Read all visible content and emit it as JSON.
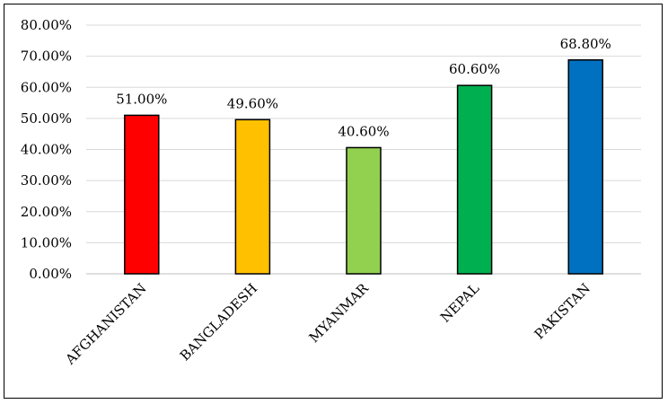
{
  "chart_data": {
    "type": "bar",
    "title": "",
    "xlabel": "",
    "ylabel": "",
    "categories": [
      "AFGHANISTAN",
      "BANGLADESH",
      "MYANMAR",
      "NEPAL",
      "PAKISTAN"
    ],
    "values": [
      51.0,
      49.6,
      40.6,
      60.6,
      68.8
    ],
    "data_labels": [
      "51.00%",
      "49.60%",
      "40.60%",
      "60.60%",
      "68.80%"
    ],
    "colors": [
      "#ff0000",
      "#ffc000",
      "#92d050",
      "#00b050",
      "#0070c0"
    ],
    "ylim": [
      0,
      80
    ],
    "yticks": [
      0,
      10,
      20,
      30,
      40,
      50,
      60,
      70,
      80
    ],
    "ytick_labels": [
      "0.00%",
      "10.00%",
      "20.00%",
      "30.00%",
      "40.00%",
      "50.00%",
      "60.00%",
      "70.00%",
      "80.00%"
    ],
    "grid": true,
    "legend": "none"
  }
}
